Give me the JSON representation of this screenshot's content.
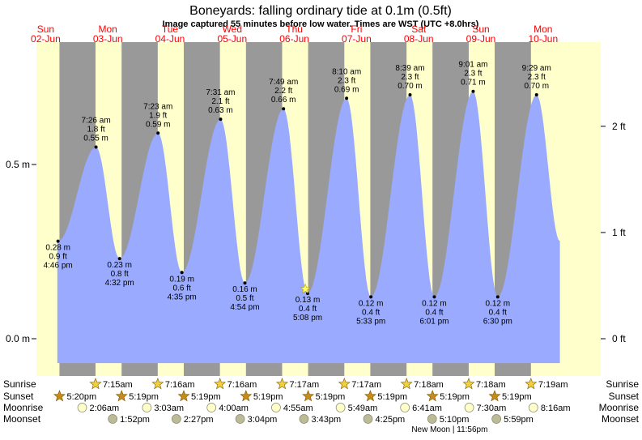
{
  "chart_data": {
    "type": "area",
    "title": "Boneyards: falling  ordinary tide at 0.1m (0.5ft)",
    "subtitle": "Image captured 55 minutes before low water. Times are WST (UTC +8.0hrs)",
    "days": [
      {
        "dow": "Sun",
        "date": "02-Jun"
      },
      {
        "dow": "Mon",
        "date": "03-Jun"
      },
      {
        "dow": "Tue",
        "date": "04-Jun"
      },
      {
        "dow": "Wed",
        "date": "05-Jun"
      },
      {
        "dow": "Thu",
        "date": "06-Jun"
      },
      {
        "dow": "Fri",
        "date": "07-Jun"
      },
      {
        "dow": "Sat",
        "date": "08-Jun"
      },
      {
        "dow": "Sun",
        "date": "09-Jun"
      },
      {
        "dow": "Mon",
        "date": "10-Jun"
      }
    ],
    "left_axis": {
      "unit": "m",
      "ticks": [
        {
          "value": 0.0,
          "label": "0.0 m"
        },
        {
          "value": 0.5,
          "label": "0.5 m"
        }
      ]
    },
    "right_axis": {
      "unit": "ft",
      "ticks": [
        {
          "value": 0,
          "label": "0 ft"
        },
        {
          "value": 1,
          "label": "1 ft"
        },
        {
          "value": 2,
          "label": "2 ft"
        }
      ]
    },
    "ylim_m": [
      -0.07,
      0.88
    ],
    "start_height_m": 0.28,
    "end_height_m": 0.28,
    "tides": [
      {
        "kind": "low",
        "day": 2,
        "time": "4:46 pm",
        "m": "0.28 m",
        "ft": "0.9 ft",
        "value": 0.28
      },
      {
        "kind": "high",
        "day": 3,
        "time": "7:26 am",
        "m": "0.55 m",
        "ft": "1.8 ft",
        "value": 0.55
      },
      {
        "kind": "low",
        "day": 3,
        "time": "4:32 pm",
        "m": "0.23 m",
        "ft": "0.8 ft",
        "value": 0.23
      },
      {
        "kind": "high",
        "day": 4,
        "time": "7:23 am",
        "m": "0.59 m",
        "ft": "1.9 ft",
        "value": 0.59
      },
      {
        "kind": "low",
        "day": 4,
        "time": "4:35 pm",
        "m": "0.19 m",
        "ft": "0.6 ft",
        "value": 0.19
      },
      {
        "kind": "high",
        "day": 5,
        "time": "7:31 am",
        "m": "0.63 m",
        "ft": "2.1 ft",
        "value": 0.63
      },
      {
        "kind": "low",
        "day": 5,
        "time": "4:54 pm",
        "m": "0.16 m",
        "ft": "0.5 ft",
        "value": 0.16
      },
      {
        "kind": "high",
        "day": 6,
        "time": "7:49 am",
        "m": "0.66 m",
        "ft": "2.2 ft",
        "value": 0.66
      },
      {
        "kind": "low",
        "day": 6,
        "time": "5:08 pm",
        "m": "0.13 m",
        "ft": "0.4 ft",
        "value": 0.13
      },
      {
        "kind": "high",
        "day": 7,
        "time": "8:10 am",
        "m": "0.69 m",
        "ft": "2.3 ft",
        "value": 0.69
      },
      {
        "kind": "low",
        "day": 7,
        "time": "5:33 pm",
        "m": "0.12 m",
        "ft": "0.4 ft",
        "value": 0.12
      },
      {
        "kind": "high",
        "day": 8,
        "time": "8:39 am",
        "m": "0.70 m",
        "ft": "2.3 ft",
        "value": 0.7
      },
      {
        "kind": "low",
        "day": 8,
        "time": "6:01 pm",
        "m": "0.12 m",
        "ft": "0.4 ft",
        "value": 0.12
      },
      {
        "kind": "high",
        "day": 9,
        "time": "9:01 am",
        "m": "0.71 m",
        "ft": "2.3 ft",
        "value": 0.71
      },
      {
        "kind": "low",
        "day": 9,
        "time": "6:30 pm",
        "m": "0.12 m",
        "ft": "0.4 ft",
        "value": 0.12
      },
      {
        "kind": "high",
        "day": 10,
        "time": "9:29 am",
        "m": "0.70 m",
        "ft": "2.3 ft",
        "value": 0.7
      }
    ],
    "current_marker": {
      "day": 6,
      "time": "4:13 pm"
    },
    "data_window": {
      "start": {
        "day": 2,
        "time": "4:30 pm"
      },
      "end": {
        "day": 10,
        "time": "6:30 pm"
      }
    },
    "night_periods": [
      {
        "start": {
          "day": 2,
          "time": "5:20 pm"
        },
        "end": {
          "day": 3,
          "time": "7:15 am"
        }
      },
      {
        "start": {
          "day": 3,
          "time": "5:19 pm"
        },
        "end": {
          "day": 4,
          "time": "7:16 am"
        }
      },
      {
        "start": {
          "day": 4,
          "time": "5:19 pm"
        },
        "end": {
          "day": 5,
          "time": "7:16 am"
        }
      },
      {
        "start": {
          "day": 5,
          "time": "5:19 pm"
        },
        "end": {
          "day": 6,
          "time": "7:17 am"
        }
      },
      {
        "start": {
          "day": 6,
          "time": "5:19 pm"
        },
        "end": {
          "day": 7,
          "time": "7:17 am"
        }
      },
      {
        "start": {
          "day": 7,
          "time": "5:19 pm"
        },
        "end": {
          "day": 8,
          "time": "7:18 am"
        }
      },
      {
        "start": {
          "day": 8,
          "time": "5:19 pm"
        },
        "end": {
          "day": 9,
          "time": "7:18 am"
        }
      },
      {
        "start": {
          "day": 9,
          "time": "5:19 pm"
        },
        "end": {
          "day": 10,
          "time": "7:19 am"
        }
      }
    ],
    "rows": [
      {
        "key": "sunrise",
        "label": "Sunrise",
        "events": [
          {
            "day": 3,
            "time": "7:15am"
          },
          {
            "day": 4,
            "time": "7:16am"
          },
          {
            "day": 5,
            "time": "7:16am"
          },
          {
            "day": 6,
            "time": "7:17am"
          },
          {
            "day": 7,
            "time": "7:17am"
          },
          {
            "day": 8,
            "time": "7:18am"
          },
          {
            "day": 9,
            "time": "7:18am"
          },
          {
            "day": 10,
            "time": "7:19am"
          }
        ]
      },
      {
        "key": "sunset",
        "label": "Sunset",
        "events": [
          {
            "day": 2,
            "time": "5:20pm"
          },
          {
            "day": 3,
            "time": "5:19pm"
          },
          {
            "day": 4,
            "time": "5:19pm"
          },
          {
            "day": 5,
            "time": "5:19pm"
          },
          {
            "day": 6,
            "time": "5:19pm"
          },
          {
            "day": 7,
            "time": "5:19pm"
          },
          {
            "day": 8,
            "time": "5:19pm"
          },
          {
            "day": 9,
            "time": "5:19pm"
          }
        ]
      },
      {
        "key": "moonrise",
        "label": "Moonrise",
        "events": [
          {
            "day": 3,
            "time": "2:06am"
          },
          {
            "day": 4,
            "time": "3:03am"
          },
          {
            "day": 5,
            "time": "4:00am"
          },
          {
            "day": 6,
            "time": "4:55am"
          },
          {
            "day": 7,
            "time": "5:49am"
          },
          {
            "day": 8,
            "time": "6:41am"
          },
          {
            "day": 9,
            "time": "7:30am"
          },
          {
            "day": 10,
            "time": "8:16am"
          }
        ]
      },
      {
        "key": "moonset",
        "label": "Moonset",
        "events": [
          {
            "day": 3,
            "time": "1:52pm"
          },
          {
            "day": 4,
            "time": "2:27pm"
          },
          {
            "day": 5,
            "time": "3:04pm"
          },
          {
            "day": 6,
            "time": "3:43pm"
          },
          {
            "day": 7,
            "time": "4:25pm"
          },
          {
            "day": 8,
            "time": "5:10pm"
          },
          {
            "day": 9,
            "time": "5:59pm"
          }
        ]
      }
    ],
    "new_moon": {
      "day": 8,
      "time": "11:56pm",
      "label": "New Moon | 11:56pm"
    },
    "grid": false
  },
  "colors": {
    "day": "#ffffcc",
    "night": "#999999",
    "water": "#99aaff",
    "day_label": "#ff0000",
    "sun_star": "#f0d040",
    "sunset_star": "#c88a1a",
    "moonrise_disc": "#ffffcc",
    "moonset_disc": "#bbbb99"
  }
}
